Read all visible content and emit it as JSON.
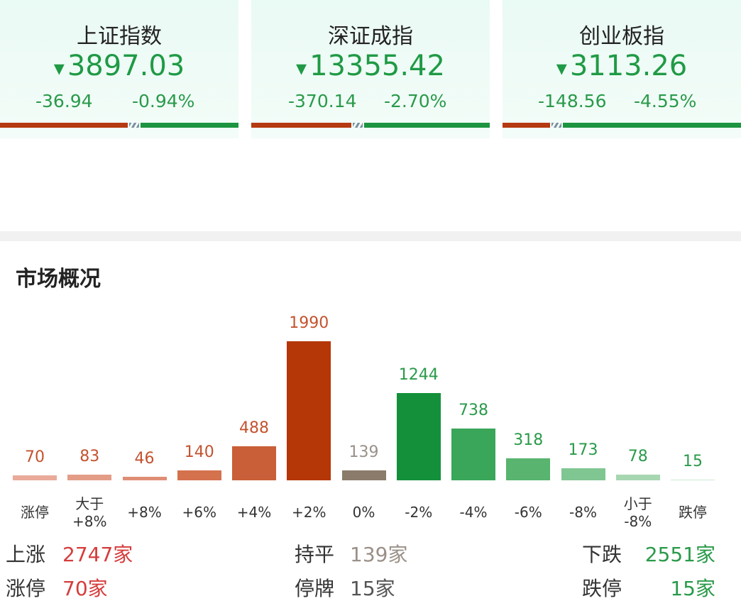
{
  "indices": [
    {
      "name": "上证指数",
      "value": "3897.03",
      "change": "-36.94",
      "change_pct": "-0.94%"
    },
    {
      "name": "深证成指",
      "value": "13355.42",
      "change": "-370.14",
      "change_pct": "-2.70%"
    },
    {
      "name": "创业板指",
      "value": "3113.26",
      "change": "-148.56",
      "change_pct": "-4.55%"
    }
  ],
  "section_title": "市场概况",
  "chart_data": {
    "type": "bar",
    "categories": [
      "涨停",
      "大于\n+8%",
      "+8%",
      "+6%",
      "+4%",
      "+2%",
      "0%",
      "-2%",
      "-4%",
      "-6%",
      "-8%",
      "小于\n-8%",
      "跌停"
    ],
    "values": [
      70,
      83,
      46,
      140,
      488,
      1990,
      139,
      1244,
      738,
      318,
      173,
      78,
      15
    ],
    "colors": [
      "#eaaa99",
      "#e39d87",
      "#df8e76",
      "#d4724d",
      "#c95f38",
      "#b53606",
      "#8a7b6b",
      "#14903a",
      "#39a65a",
      "#58b46e",
      "#80c692",
      "#a6d7b1",
      "#cde9d3"
    ],
    "label_colors": [
      "#c4532f",
      "#c4532f",
      "#c4532f",
      "#c4532f",
      "#c4532f",
      "#c4532f",
      "#9a9088",
      "#2a9a4a",
      "#2a9a4a",
      "#2a9a4a",
      "#2a9a4a",
      "#2a9a4a",
      "#2a9a4a"
    ]
  },
  "summary": [
    [
      {
        "label": "上涨",
        "value": "2747家"
      },
      {
        "label": "持平",
        "value": "139家"
      },
      {
        "label": "下跌",
        "value": "2551家"
      }
    ],
    [
      {
        "label": "涨停",
        "value": "70家"
      },
      {
        "label": "停牌",
        "value": "15家"
      },
      {
        "label": "跌停",
        "value": "15家"
      }
    ]
  ]
}
